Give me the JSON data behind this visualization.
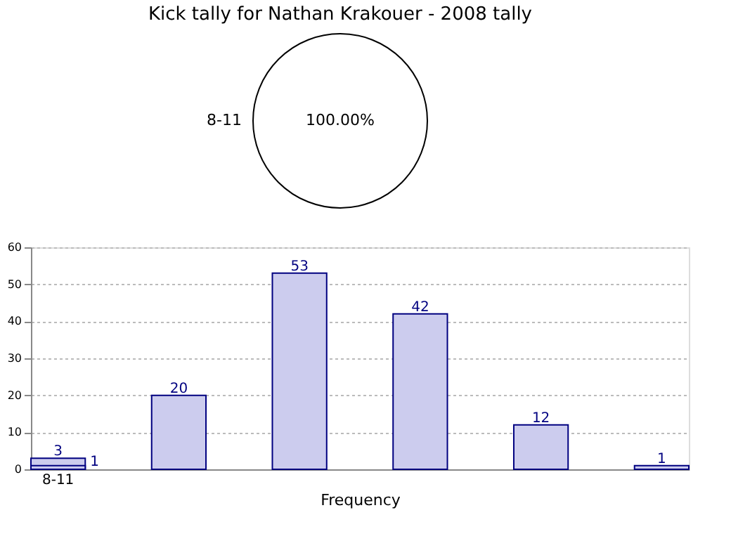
{
  "chart_data": [
    {
      "type": "pie",
      "title": "Kick tally for Nathan Krakouer - 2008 tally",
      "categories": [
        "8-11"
      ],
      "values": [
        100
      ],
      "colors": [
        "#ffffff"
      ],
      "value_labels": [
        "100.00%"
      ]
    },
    {
      "type": "bar",
      "xlabel": "Frequency",
      "categories": [
        "8-11",
        null,
        null,
        null,
        null,
        null
      ],
      "series": [
        {
          "color": "#ccccee",
          "values": [
            3,
            20,
            53,
            42,
            12,
            1
          ]
        },
        {
          "color": "#ccccee",
          "values": [
            1,
            null,
            null,
            null,
            null,
            null
          ]
        }
      ],
      "ylim": [
        0,
        60
      ],
      "yticks": [
        0,
        10,
        20,
        30,
        40,
        50,
        60
      ],
      "grid": "y",
      "data_labels": true
    }
  ]
}
